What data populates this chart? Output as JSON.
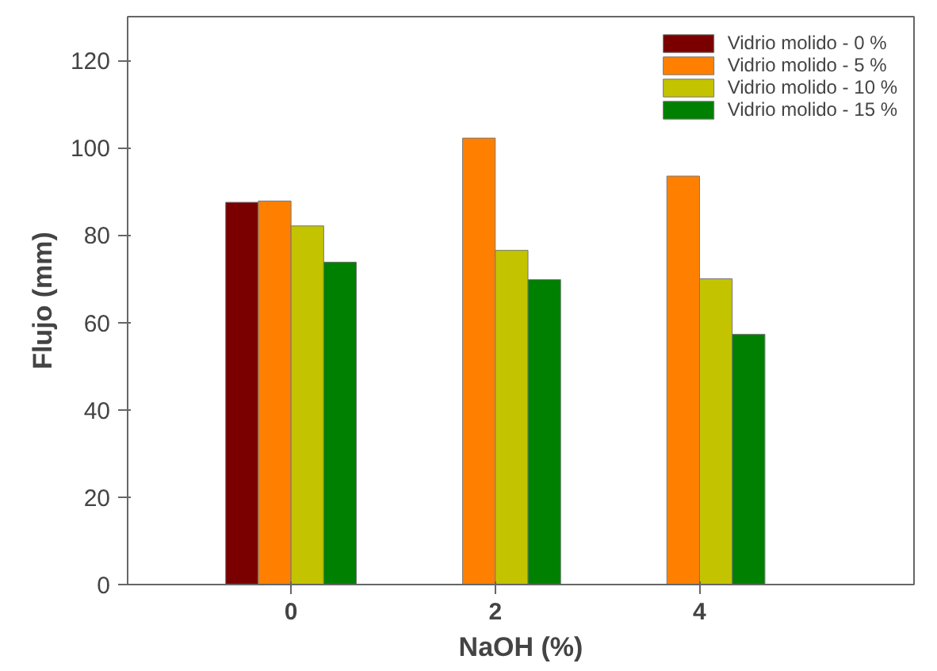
{
  "chart_data": {
    "type": "bar",
    "xlabel": "NaOH (%)",
    "ylabel": "Flujo (mm)",
    "categories": [
      "0",
      "2",
      "4"
    ],
    "series": [
      {
        "name": "Vidrio molido - 0 %",
        "color": "#7a0000",
        "values": [
          87.5,
          null,
          null
        ]
      },
      {
        "name": "Vidrio molido - 5 %",
        "color": "#ff8000",
        "values": [
          87.8,
          102.2,
          93.5
        ]
      },
      {
        "name": "Vidrio molido - 10 %",
        "color": "#c3c300",
        "values": [
          82.1,
          76.5,
          70.0
        ]
      },
      {
        "name": "Vidrio molido - 15 %",
        "color": "#008000",
        "values": [
          73.8,
          69.8,
          57.3
        ]
      }
    ],
    "ylim": [
      0,
      130
    ],
    "yticks": [
      0,
      20,
      40,
      60,
      80,
      100,
      120
    ],
    "grid": false,
    "legend": "top right"
  }
}
